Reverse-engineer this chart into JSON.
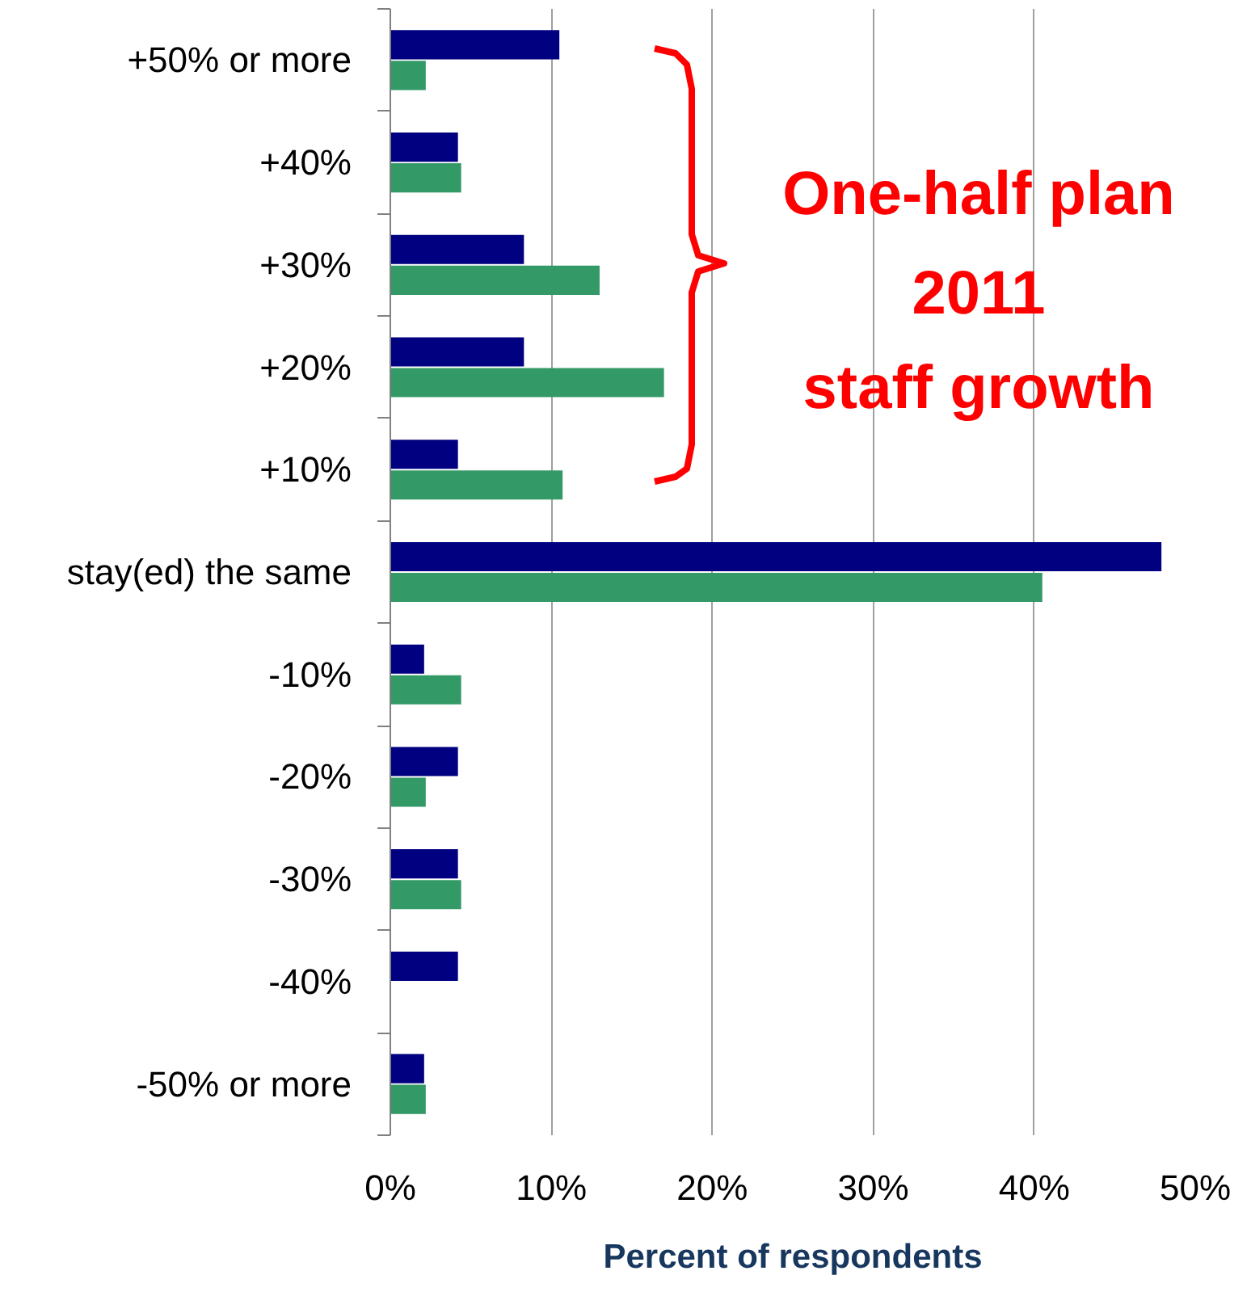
{
  "chart_data": {
    "type": "bar",
    "orientation": "horizontal",
    "xlabel": "Percent of respondents",
    "categories": [
      "+50% or more",
      "+40%",
      "+30%",
      "+20%",
      "+10%",
      "stay(ed) the same",
      "-10%",
      "-20%",
      "-30%",
      "-40%",
      "-50% or more"
    ],
    "series": [
      {
        "color": "#000080",
        "values": [
          10.5,
          4.2,
          8.3,
          8.3,
          4.2,
          47.9,
          2.1,
          4.2,
          4.2,
          4.2,
          2.1
        ]
      },
      {
        "color": "#339966",
        "values": [
          2.2,
          4.4,
          13.0,
          17.0,
          10.7,
          40.5,
          4.4,
          2.2,
          4.4,
          0,
          2.2
        ]
      }
    ],
    "xlim": [
      0,
      50
    ],
    "xticks": [
      {
        "value": 0,
        "label": "0%"
      },
      {
        "value": 10,
        "label": "10%"
      },
      {
        "value": 20,
        "label": "20%"
      },
      {
        "value": 30,
        "label": "30%"
      },
      {
        "value": 40,
        "label": "40%"
      },
      {
        "value": 50,
        "label": "50%"
      }
    ],
    "grid": "x",
    "annotations": [
      "One-half plan\n2011\nstaff growth"
    ]
  }
}
